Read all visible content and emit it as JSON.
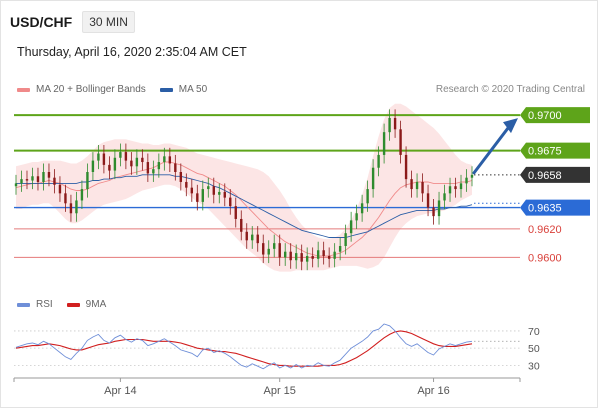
{
  "header": {
    "pair": "USD/CHF",
    "timeframe": "30 MIN",
    "datetime": "Thursday, April 16, 2020 2:35:04 AM CET",
    "copyright": "Research © 2020 Trading Central"
  },
  "legend": {
    "main": [
      {
        "label": "MA 20 + Bollinger Bands",
        "color": "#f08a8a"
      },
      {
        "label": "MA 50",
        "color": "#2b5ea6"
      }
    ],
    "rsi": [
      {
        "label": "RSI",
        "color": "#6f8fd8"
      },
      {
        "label": "9MA",
        "color": "#d11f1f"
      }
    ]
  },
  "colors": {
    "up_candle": "#2e8b2e",
    "down_candle": "#8b1a1a",
    "resistance": "#5ea41a",
    "support_main": "#2b6bd6",
    "support_minor": "#e47a7a",
    "current": "#333333",
    "bollinger": "#fbdcdc",
    "ma20": "#f08a8a",
    "ma50": "#2b5ea6",
    "rsi": "#6f8fd8",
    "rsi_ma": "#d11f1f"
  },
  "chart_data": {
    "type": "candlestick",
    "instrument": "USD/CHF",
    "interval": "30 MIN",
    "ylim": [
      0.9582,
      0.9712
    ],
    "x_tick_labels": [
      "Apr 14",
      "Apr 15",
      "Apr 16"
    ],
    "levels": [
      {
        "value": 0.97,
        "label": "0.9700",
        "kind": "resistance"
      },
      {
        "value": 0.9675,
        "label": "0.9675",
        "kind": "resistance"
      },
      {
        "value": 0.9658,
        "label": "0.9658",
        "kind": "current"
      },
      {
        "value": 0.9635,
        "label": "0.9635",
        "kind": "support_main"
      },
      {
        "value": 0.962,
        "label": "0.9620",
        "kind": "support_minor"
      },
      {
        "value": 0.96,
        "label": "0.9600",
        "kind": "support_minor"
      }
    ],
    "current_price": 0.9658,
    "target": 0.97,
    "closes": [
      0.9652,
      0.9655,
      0.9654,
      0.9657,
      0.9653,
      0.966,
      0.9656,
      0.9651,
      0.9645,
      0.9638,
      0.9631,
      0.964,
      0.9648,
      0.966,
      0.9668,
      0.9673,
      0.9665,
      0.9661,
      0.967,
      0.9674,
      0.9668,
      0.9664,
      0.967,
      0.9667,
      0.9659,
      0.9662,
      0.9667,
      0.9671,
      0.9666,
      0.966,
      0.9653,
      0.9649,
      0.9645,
      0.9639,
      0.9648,
      0.965,
      0.9644,
      0.9646,
      0.9642,
      0.9636,
      0.9627,
      0.9618,
      0.9612,
      0.9616,
      0.961,
      0.9602,
      0.9606,
      0.961,
      0.96,
      0.9604,
      0.9598,
      0.9603,
      0.9597,
      0.9601,
      0.9599,
      0.9605,
      0.9601,
      0.9599,
      0.9604,
      0.9608,
      0.9617,
      0.9626,
      0.9631,
      0.9638,
      0.9648,
      0.9663,
      0.9672,
      0.9688,
      0.9698,
      0.969,
      0.9672,
      0.9655,
      0.9648,
      0.9653,
      0.9645,
      0.9635,
      0.9629,
      0.964,
      0.9645,
      0.965,
      0.9648,
      0.9652,
      0.9656,
      0.9658
    ],
    "ma20": [
      0.9649,
      0.965,
      0.9651,
      0.9652,
      0.9652,
      0.9653,
      0.9654,
      0.9653,
      0.9652,
      0.965,
      0.9648,
      0.9647,
      0.9647,
      0.9648,
      0.965,
      0.9652,
      0.9653,
      0.9654,
      0.9656,
      0.9657,
      0.9658,
      0.9659,
      0.966,
      0.9661,
      0.9662,
      0.9663,
      0.9665,
      0.9667,
      0.9667,
      0.9666,
      0.9665,
      0.9663,
      0.9661,
      0.9659,
      0.9658,
      0.9656,
      0.9654,
      0.9652,
      0.965,
      0.9647,
      0.9644,
      0.964,
      0.9636,
      0.9632,
      0.9628,
      0.9624,
      0.962,
      0.9617,
      0.9614,
      0.9611,
      0.9609,
      0.9607,
      0.9605,
      0.9603,
      0.9602,
      0.9601,
      0.9601,
      0.9601,
      0.9602,
      0.9603,
      0.9605,
      0.9608,
      0.9611,
      0.9614,
      0.9618,
      0.9623,
      0.9628,
      0.9634,
      0.964,
      0.9645,
      0.9649,
      0.9651,
      0.9652,
      0.9653,
      0.9653,
      0.9653,
      0.9652,
      0.9652,
      0.9652,
      0.9652,
      0.9652,
      0.9653,
      0.9653,
      0.9654
    ],
    "ma50": [
      0.9652,
      0.9652,
      0.9652,
      0.9652,
      0.9652,
      0.9652,
      0.9652,
      0.9652,
      0.9652,
      0.9652,
      0.9652,
      0.9652,
      0.9653,
      0.9653,
      0.9654,
      0.9654,
      0.9655,
      0.9655,
      0.9656,
      0.9656,
      0.9657,
      0.9657,
      0.9657,
      0.9658,
      0.9658,
      0.9658,
      0.9658,
      0.9658,
      0.9658,
      0.9657,
      0.9657,
      0.9656,
      0.9655,
      0.9654,
      0.9653,
      0.9652,
      0.965,
      0.9649,
      0.9647,
      0.9645,
      0.9643,
      0.9641,
      0.9639,
      0.9637,
      0.9635,
      0.9633,
      0.9631,
      0.9629,
      0.9627,
      0.9625,
      0.9623,
      0.9621,
      0.9619,
      0.9618,
      0.9617,
      0.9616,
      0.9615,
      0.9614,
      0.9614,
      0.9614,
      0.9614,
      0.9615,
      0.9616,
      0.9617,
      0.9618,
      0.962,
      0.9622,
      0.9624,
      0.9626,
      0.9628,
      0.963,
      0.9631,
      0.9632,
      0.9633,
      0.9633,
      0.9633,
      0.9633,
      0.9634,
      0.9634,
      0.9635,
      0.9635,
      0.9636,
      0.9636,
      0.9637
    ],
    "bb_upper": [
      0.9664,
      0.9665,
      0.9666,
      0.9667,
      0.9667,
      0.9668,
      0.9668,
      0.9668,
      0.9668,
      0.9667,
      0.9666,
      0.9666,
      0.9668,
      0.9671,
      0.9675,
      0.9679,
      0.9681,
      0.9682,
      0.9683,
      0.9683,
      0.9683,
      0.9682,
      0.9681,
      0.968,
      0.968,
      0.9679,
      0.9679,
      0.968,
      0.968,
      0.9679,
      0.9678,
      0.9677,
      0.9675,
      0.9673,
      0.9672,
      0.9671,
      0.967,
      0.9669,
      0.9668,
      0.9667,
      0.9666,
      0.9665,
      0.9664,
      0.9663,
      0.9662,
      0.966,
      0.9657,
      0.9652,
      0.9647,
      0.9641,
      0.9634,
      0.9628,
      0.9623,
      0.9619,
      0.9616,
      0.9614,
      0.9613,
      0.9613,
      0.9614,
      0.9616,
      0.962,
      0.9626,
      0.9634,
      0.9644,
      0.9656,
      0.9671,
      0.9685,
      0.9697,
      0.9705,
      0.9708,
      0.9708,
      0.9706,
      0.9703,
      0.97,
      0.9697,
      0.9694,
      0.9691,
      0.9687,
      0.9682,
      0.9677,
      0.9672,
      0.9668,
      0.9666,
      0.9665
    ],
    "bb_lower": [
      0.9634,
      0.9634,
      0.9636,
      0.9637,
      0.9637,
      0.9638,
      0.9638,
      0.9635,
      0.9631,
      0.9627,
      0.9624,
      0.9624,
      0.9626,
      0.9629,
      0.9632,
      0.9635,
      0.9637,
      0.9638,
      0.9639,
      0.964,
      0.9641,
      0.9643,
      0.9645,
      0.9647,
      0.9648,
      0.9649,
      0.965,
      0.9651,
      0.9651,
      0.965,
      0.9648,
      0.9645,
      0.9642,
      0.9639,
      0.9637,
      0.9634,
      0.963,
      0.9626,
      0.9622,
      0.9618,
      0.9614,
      0.961,
      0.9606,
      0.9603,
      0.96,
      0.9596,
      0.9593,
      0.9591,
      0.959,
      0.959,
      0.959,
      0.9591,
      0.9591,
      0.9591,
      0.9591,
      0.9591,
      0.9591,
      0.9592,
      0.9593,
      0.9594,
      0.9594,
      0.9594,
      0.9594,
      0.9593,
      0.9592,
      0.9593,
      0.9595,
      0.96,
      0.9607,
      0.9614,
      0.962,
      0.9624,
      0.9627,
      0.9629,
      0.963,
      0.9631,
      0.9631,
      0.9632,
      0.9633,
      0.9635,
      0.9637,
      0.964,
      0.9642,
      0.9644
    ],
    "rsi": {
      "ylim": [
        20,
        85
      ],
      "ticks": [
        70,
        50,
        30
      ],
      "rsi": [
        51,
        53,
        55,
        56,
        54,
        58,
        55,
        50,
        45,
        40,
        37,
        44,
        50,
        59,
        63,
        66,
        59,
        56,
        62,
        65,
        60,
        57,
        61,
        59,
        53,
        55,
        58,
        61,
        57,
        53,
        48,
        46,
        44,
        40,
        48,
        50,
        45,
        47,
        44,
        40,
        35,
        30,
        28,
        32,
        29,
        26,
        30,
        33,
        27,
        30,
        27,
        31,
        27,
        30,
        29,
        33,
        30,
        29,
        33,
        36,
        43,
        50,
        54,
        58,
        63,
        70,
        72,
        78,
        76,
        70,
        62,
        55,
        52,
        55,
        50,
        45,
        42,
        49,
        52,
        55,
        53,
        55,
        57,
        58
      ],
      "ma": [
        50,
        51,
        52,
        53,
        53,
        54,
        55,
        54,
        53,
        51,
        49,
        48,
        48,
        50,
        52,
        54,
        55,
        56,
        58,
        59,
        60,
        60,
        60,
        60,
        59,
        58,
        58,
        58,
        58,
        57,
        56,
        54,
        52,
        50,
        49,
        48,
        47,
        46,
        46,
        45,
        44,
        42,
        40,
        38,
        36,
        34,
        32,
        31,
        30,
        30,
        29,
        29,
        29,
        29,
        29,
        29,
        30,
        30,
        30,
        31,
        33,
        36,
        39,
        43,
        47,
        52,
        57,
        62,
        66,
        69,
        70,
        69,
        67,
        64,
        61,
        58,
        55,
        53,
        52,
        52,
        52,
        53,
        54,
        55
      ]
    }
  }
}
